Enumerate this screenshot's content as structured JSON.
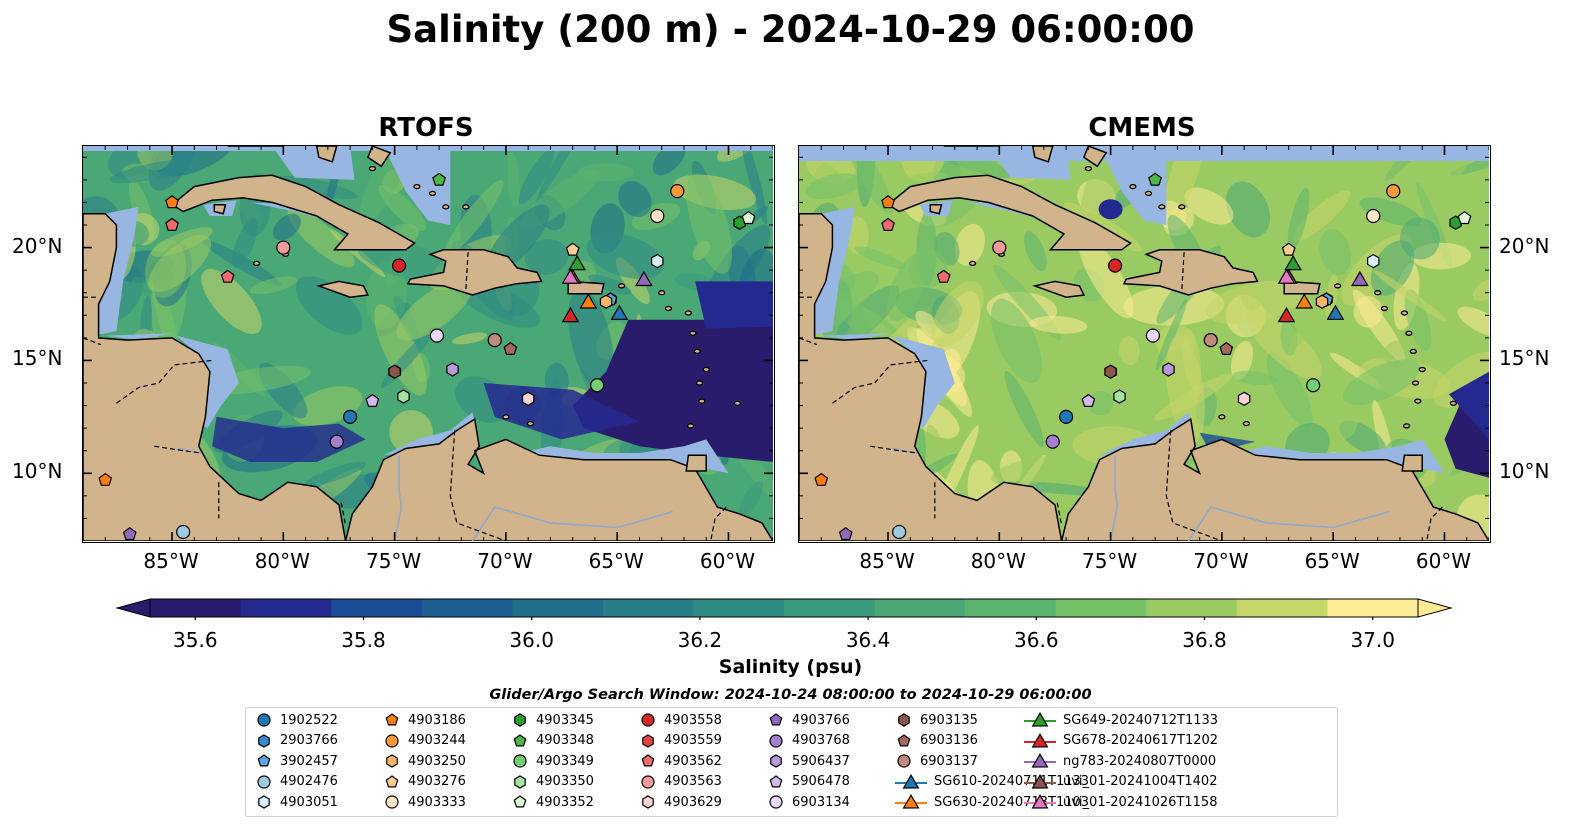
{
  "title": "Salinity (200 m) - 2024-10-29 06:00:00",
  "panels": [
    {
      "title": "RTOFS"
    },
    {
      "title": "CMEMS"
    }
  ],
  "axes": {
    "lon_ticks": [
      "85°W",
      "80°W",
      "75°W",
      "70°W",
      "65°W",
      "60°W"
    ],
    "lat_ticks": [
      "20°N",
      "15°N",
      "10°N"
    ],
    "lon_range": [
      -89,
      -58
    ],
    "lat_range": [
      7,
      24.5
    ]
  },
  "colorbar": {
    "label": "Salinity (psu)",
    "ticks": [
      "35.6",
      "35.8",
      "36.0",
      "36.2",
      "36.4",
      "36.6",
      "36.8",
      "37.0"
    ],
    "range": [
      35.6,
      37.0
    ],
    "colors": [
      "#2a1c6c",
      "#24298f",
      "#1c4c95",
      "#1b5f93",
      "#1f6f8b",
      "#287d89",
      "#2f8b84",
      "#3a9a7e",
      "#4aa776",
      "#5cb56e",
      "#76c168",
      "#9acb63",
      "#c7d66a",
      "#ffeb93"
    ]
  },
  "search_window": "Glider/Argo Search Window: 2024-10-24 08:00:00 to 2024-10-29 06:00:00",
  "colors": {
    "land": "#d2b48c",
    "shelf": "#98b6e2",
    "coast": "#000000"
  },
  "legend": [
    {
      "label": "1902522",
      "marker": "circle",
      "color": "#1f77b4"
    },
    {
      "label": "2903766",
      "marker": "hexagon",
      "color": "#3a8ad0"
    },
    {
      "label": "3902457",
      "marker": "pentagon",
      "color": "#5aa6e0"
    },
    {
      "label": "4902476",
      "marker": "circle",
      "color": "#9ecae1"
    },
    {
      "label": "4903051",
      "marker": "hexagon",
      "color": "#dbeefb"
    },
    {
      "label": "4903186",
      "marker": "pentagon",
      "color": "#ff7f0e"
    },
    {
      "label": "4903244",
      "marker": "circle",
      "color": "#ff9a3a"
    },
    {
      "label": "4903250",
      "marker": "hexagon",
      "color": "#ffb468"
    },
    {
      "label": "4903276",
      "marker": "pentagon",
      "color": "#ffcc94"
    },
    {
      "label": "4903333",
      "marker": "circle",
      "color": "#ffe7c8"
    },
    {
      "label": "4903345",
      "marker": "hexagon",
      "color": "#2ca02c"
    },
    {
      "label": "4903348",
      "marker": "pentagon",
      "color": "#4cb84c"
    },
    {
      "label": "4903349",
      "marker": "circle",
      "color": "#74cf74"
    },
    {
      "label": "4903350",
      "marker": "hexagon",
      "color": "#a6e3a0"
    },
    {
      "label": "4903352",
      "marker": "pentagon",
      "color": "#dcf6d6"
    },
    {
      "label": "4903558",
      "marker": "circle",
      "color": "#d62728"
    },
    {
      "label": "4903559",
      "marker": "hexagon",
      "color": "#e34545"
    },
    {
      "label": "4903562",
      "marker": "pentagon",
      "color": "#ee6b6b"
    },
    {
      "label": "4903563",
      "marker": "circle",
      "color": "#f59a9a"
    },
    {
      "label": "4903629",
      "marker": "hexagon",
      "color": "#fcd3d3"
    },
    {
      "label": "4903766",
      "marker": "pentagon",
      "color": "#9467bd"
    },
    {
      "label": "4903768",
      "marker": "circle",
      "color": "#a47fcc"
    },
    {
      "label": "5906437",
      "marker": "hexagon",
      "color": "#b899da"
    },
    {
      "label": "5906478",
      "marker": "pentagon",
      "color": "#d2b8ec"
    },
    {
      "label": "6903134",
      "marker": "circle",
      "color": "#ead8fa"
    },
    {
      "label": "6903135",
      "marker": "hexagon",
      "color": "#8c564b"
    },
    {
      "label": "6903136",
      "marker": "pentagon",
      "color": "#a46a5e"
    },
    {
      "label": "6903137",
      "marker": "circle",
      "color": "#c08a7e"
    },
    {
      "label": "SG610-20240711T1133",
      "marker": "triangle",
      "color": "#1f77b4"
    },
    {
      "label": "SG630-20240713T1103",
      "marker": "triangle",
      "color": "#ff7f0e"
    },
    {
      "label": "SG649-20240712T1133",
      "marker": "triangle",
      "color": "#2ca02c"
    },
    {
      "label": "SG678-20240617T1202",
      "marker": "triangle",
      "color": "#d62728"
    },
    {
      "label": "ng783-20240807T0000",
      "marker": "triangle",
      "color": "#9467bd"
    },
    {
      "label": "uvi_01-20241004T1402",
      "marker": "triangle",
      "color": "#8c564b"
    },
    {
      "label": "uvi_01-20241026T1158",
      "marker": "triangle",
      "color": "#e377c2"
    }
  ],
  "stations": [
    {
      "id": "1902522",
      "lon": -77.0,
      "lat": 12.5
    },
    {
      "id": "2903766",
      "lon": -65.3,
      "lat": 17.7
    },
    {
      "id": "3902457",
      "lon": -65.3,
      "lat": 17.7
    },
    {
      "id": "4902476",
      "lon": -84.5,
      "lat": 7.4
    },
    {
      "id": "4903051",
      "lon": -63.2,
      "lat": 19.4
    },
    {
      "id": "4903186",
      "lon": -88.0,
      "lat": 9.7
    },
    {
      "id": "4903244",
      "lon": -62.3,
      "lat": 22.5
    },
    {
      "id": "4903250",
      "lon": -65.5,
      "lat": 17.6
    },
    {
      "id": "4903276",
      "lon": -67.0,
      "lat": 19.9
    },
    {
      "id": "4903333",
      "lon": -63.2,
      "lat": 21.4
    },
    {
      "id": "4903345",
      "lon": -59.5,
      "lat": 21.1
    },
    {
      "id": "4903348",
      "lon": -73.0,
      "lat": 23.0
    },
    {
      "id": "4903349",
      "lon": -65.9,
      "lat": 13.9
    },
    {
      "id": "4903350",
      "lon": -74.6,
      "lat": 13.4
    },
    {
      "id": "4903352",
      "lon": -59.1,
      "lat": 21.3
    },
    {
      "id": "4903558",
      "lon": -74.8,
      "lat": 19.2
    },
    {
      "id": "4903559",
      "lon": -75.0,
      "lat": 14.5
    },
    {
      "id": "4903562",
      "lon": -82.5,
      "lat": 18.7
    },
    {
      "id": "4903563",
      "lon": -80.0,
      "lat": 20.0
    },
    {
      "id": "4903629",
      "lon": -69.0,
      "lat": 13.3
    },
    {
      "id": "4903766",
      "lon": -86.9,
      "lat": 7.3
    },
    {
      "id": "4903768",
      "lon": -77.6,
      "lat": 11.4
    },
    {
      "id": "5906437",
      "lon": -72.4,
      "lat": 14.6
    },
    {
      "id": "5906478",
      "lon": -76.0,
      "lat": 13.2
    },
    {
      "id": "6903134",
      "lon": -73.1,
      "lat": 16.1
    },
    {
      "id": "6903135",
      "lon": -75.0,
      "lat": 14.5
    },
    {
      "id": "6903136",
      "lon": -69.8,
      "lat": 15.5
    },
    {
      "id": "6903137",
      "lon": -70.5,
      "lat": 15.9
    },
    {
      "id": "SG610",
      "lon": -64.9,
      "lat": 17.1
    },
    {
      "id": "SG630",
      "lon": -66.3,
      "lat": 17.6
    },
    {
      "id": "SG649",
      "lon": -66.8,
      "lat": 19.3
    },
    {
      "id": "SG678",
      "lon": -67.1,
      "lat": 17.0
    },
    {
      "id": "ng783",
      "lon": -63.8,
      "lat": 18.6
    },
    {
      "id": "uvi_01-20241004T1402",
      "lon": -67.0,
      "lat": 18.7
    },
    {
      "id": "uvi_01-20241026T1158",
      "lon": -67.1,
      "lat": 18.7
    },
    {
      "id": "4903186b",
      "lon": -85.0,
      "lat": 22.0
    },
    {
      "id": "4903562b",
      "lon": -85.0,
      "lat": 21.0
    }
  ]
}
